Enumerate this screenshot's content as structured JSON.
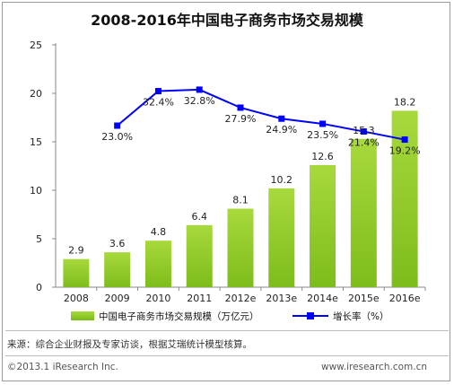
{
  "chart_data": {
    "type": "bar",
    "title": "2008-2016年中国电子商务市场交易规模",
    "categories": [
      "2008",
      "2009",
      "2010",
      "2011",
      "2012e",
      "2013e",
      "2014e",
      "2015e",
      "2016e"
    ],
    "series": [
      {
        "name": "中国电子商务市场交易规模（万亿元）",
        "type": "bar",
        "axis": "left",
        "values": [
          2.9,
          3.6,
          4.8,
          6.4,
          8.1,
          10.2,
          12.6,
          15.3,
          18.2
        ],
        "value_labels": [
          "2.9",
          "3.6",
          "4.8",
          "6.4",
          "8.1",
          "10.2",
          "12.6",
          "15.3",
          "18.2"
        ]
      },
      {
        "name": "增长率（%）",
        "type": "line",
        "axis": "right",
        "values": [
          null,
          23.0,
          32.4,
          32.8,
          27.9,
          24.9,
          23.5,
          21.4,
          19.2
        ],
        "value_labels": [
          "",
          "23.0%",
          "32.4%",
          "32.8%",
          "27.9%",
          "24.9%",
          "23.5%",
          "21.4%",
          "19.2%"
        ]
      }
    ],
    "ylim": [
      0,
      25
    ],
    "yticks": [
      0,
      5,
      10,
      15,
      20,
      25
    ],
    "y2lim": [
      -21,
      45
    ],
    "grid": false,
    "legend_position": "bottom",
    "colors": {
      "bar": "#8cc63f",
      "line": "#0000ff"
    }
  },
  "footer": {
    "source": "来源：综合企业财报及专家访谈，根据艾瑞统计模型核算。",
    "copyright": "©2013.1 iResearch Inc.",
    "website": "www.iresearch.com.cn"
  }
}
